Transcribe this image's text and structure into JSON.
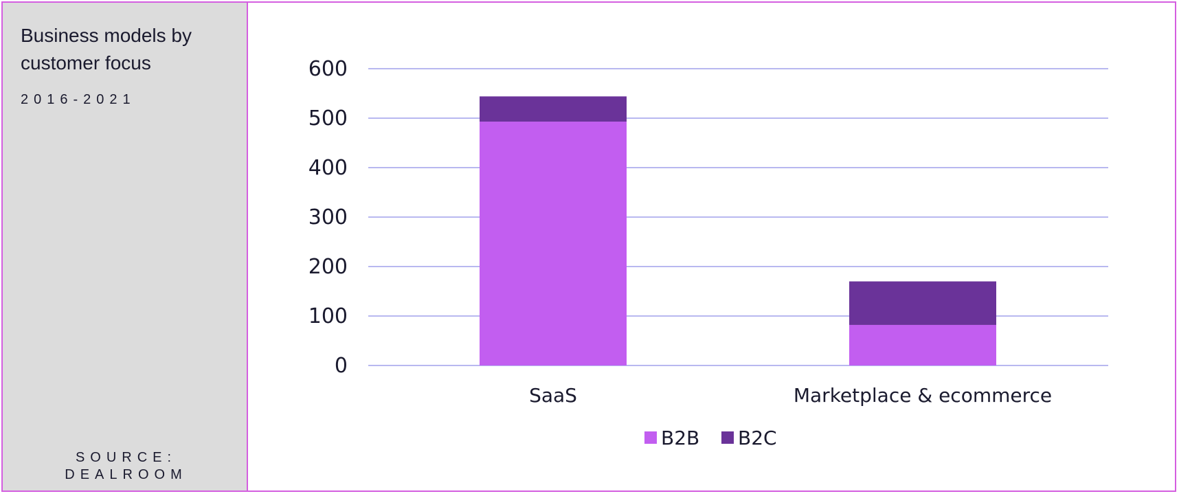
{
  "sidebar": {
    "title": "Business models by customer focus",
    "subtitle": "2016-2021",
    "source_line1": "SOURCE:",
    "source_line2": "DEALROOM"
  },
  "colors": {
    "b2b": "#c25ef0",
    "b2c": "#6a3399",
    "grid": "#b8b8f0",
    "border": "#d45ee0"
  },
  "chart_data": {
    "type": "bar",
    "stacked": true,
    "categories": [
      "SaaS",
      "Marketplace & ecommerce"
    ],
    "series": [
      {
        "name": "B2B",
        "values": [
          493,
          82
        ]
      },
      {
        "name": "B2C",
        "values": [
          51,
          88
        ]
      }
    ],
    "ylim": [
      0,
      600
    ],
    "yticks": [
      0,
      100,
      200,
      300,
      400,
      500,
      600
    ],
    "grid": true,
    "legend": "bottom-center"
  }
}
